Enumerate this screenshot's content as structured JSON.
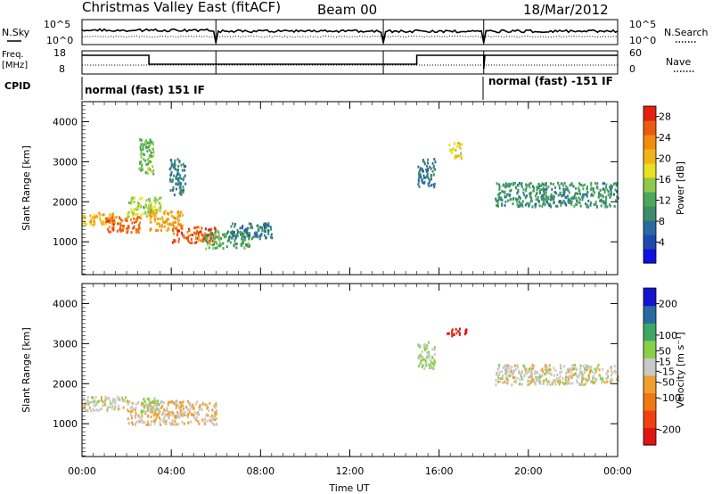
{
  "header": {
    "title": "Christmas Valley East (fitACF)",
    "beam": "Beam 00",
    "date": "18/Mar/2012"
  },
  "top_panels": {
    "nsky_label": "N.Sky",
    "nsearch_label": "N.Search",
    "noise_ticks_left": [
      "10^5",
      "10^0"
    ],
    "noise_ticks_right": [
      "10^5",
      "10^0"
    ],
    "freq_label_1": "Freq.",
    "freq_label_2": "[MHz]",
    "freq_ticks": [
      "18",
      "8"
    ],
    "nave_label": "Nave",
    "nave_ticks": [
      "60",
      "0"
    ],
    "cpid_label": "CPID",
    "cpid_segments": [
      {
        "label": "normal (fast) 151 IF",
        "start_hour": 0,
        "end_hour": 18
      },
      {
        "label": "normal (fast) -151 IF",
        "start_hour": 18,
        "end_hour": 24
      }
    ]
  },
  "axes": {
    "x_label": "Time UT",
    "x_ticks": [
      "00:00",
      "04:00",
      "08:00",
      "12:00",
      "16:00",
      "20:00",
      "00:00"
    ],
    "y_label": "Slant Range [km]",
    "y_ticks": [
      "1000",
      "2000",
      "3000",
      "4000"
    ]
  },
  "chart_data": [
    {
      "type": "heatmap",
      "name": "power",
      "x_range_hours": [
        0,
        24
      ],
      "y_range_km": [
        180,
        4500
      ],
      "y_ticks": [
        1000,
        2000,
        3000,
        4000
      ],
      "colorbar": {
        "label": "Power [dB]",
        "ticks": [
          4,
          8,
          12,
          16,
          20,
          24,
          28
        ],
        "range": [
          0,
          30
        ],
        "colors": [
          "#1010e0",
          "#1e4ab0",
          "#2a6aa0",
          "#3e8c6c",
          "#49a85a",
          "#8fc84a",
          "#e8e020",
          "#f0b418",
          "#f08c10",
          "#ec5a10",
          "#e42010"
        ]
      },
      "regions": [
        {
          "t0": 0.0,
          "t1": 1.5,
          "r0": 1450,
          "r1": 1750,
          "level": 20
        },
        {
          "t0": 1.0,
          "t1": 2.6,
          "r0": 1250,
          "r1": 1650,
          "level": 25
        },
        {
          "t0": 2.0,
          "t1": 3.5,
          "r0": 1650,
          "r1": 2150,
          "level": 16
        },
        {
          "t0": 3.0,
          "t1": 4.5,
          "r0": 1300,
          "r1": 1800,
          "level": 22
        },
        {
          "t0": 4.0,
          "t1": 6.0,
          "r0": 1000,
          "r1": 1400,
          "level": 26
        },
        {
          "t0": 5.5,
          "t1": 7.5,
          "r0": 850,
          "r1": 1300,
          "level": 12
        },
        {
          "t0": 6.5,
          "t1": 8.5,
          "r0": 1100,
          "r1": 1500,
          "level": 8
        },
        {
          "t0": 2.5,
          "t1": 3.2,
          "r0": 2700,
          "r1": 3600,
          "level": 14
        },
        {
          "t0": 3.9,
          "t1": 4.6,
          "r0": 2200,
          "r1": 3100,
          "level": 8
        },
        {
          "t0": 15.0,
          "t1": 15.8,
          "r0": 2400,
          "r1": 3100,
          "level": 8
        },
        {
          "t0": 16.4,
          "t1": 17.0,
          "r0": 3100,
          "r1": 3500,
          "level": 18
        },
        {
          "t0": 18.5,
          "t1": 24.0,
          "r0": 1900,
          "r1": 2500,
          "level": 10
        }
      ]
    },
    {
      "type": "heatmap",
      "name": "velocity",
      "x_range_hours": [
        0,
        24
      ],
      "y_range_km": [
        180,
        4500
      ],
      "y_ticks": [
        1000,
        2000,
        3000,
        4000
      ],
      "colorbar": {
        "label": "Velocity [m s⁻¹]",
        "ticks": [
          -200,
          -100,
          -50,
          -15,
          15,
          50,
          100,
          200
        ],
        "range": [
          -250,
          250
        ],
        "colors": [
          "#e01414",
          "#f04010",
          "#f07810",
          "#f0a030",
          "#c8c8c8",
          "#88d048",
          "#3ca864",
          "#2a6aa0",
          "#1414d0"
        ]
      },
      "regions": [
        {
          "t0": 0.0,
          "t1": 2.0,
          "r0": 1350,
          "r1": 1700,
          "level": 0
        },
        {
          "t0": 2.0,
          "t1": 6.0,
          "r0": 1000,
          "r1": 1600,
          "level": -30
        },
        {
          "t0": 2.6,
          "t1": 3.4,
          "r0": 1300,
          "r1": 1700,
          "level": 40
        },
        {
          "t0": 15.0,
          "t1": 15.8,
          "r0": 2400,
          "r1": 3100,
          "level": 35
        },
        {
          "t0": 16.3,
          "t1": 17.2,
          "r0": 3200,
          "r1": 3400,
          "level": -220
        },
        {
          "t0": 18.5,
          "t1": 24.0,
          "r0": 2000,
          "r1": 2500,
          "level": 0
        }
      ]
    }
  ]
}
